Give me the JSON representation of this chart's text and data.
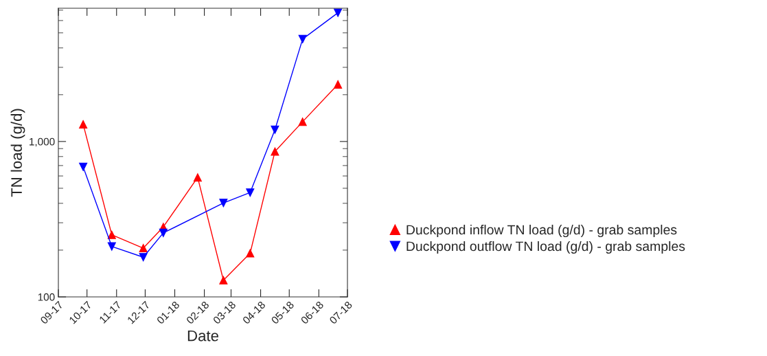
{
  "chart_data": {
    "type": "line",
    "xlabel": "Date",
    "ylabel": "TN load (g/d)",
    "log": "y",
    "legend": "right",
    "grid": false,
    "xlim": [
      "2017-09-01",
      "2018-07-01"
    ],
    "xticks": [
      {
        "value": "2017-09-01",
        "label": "09-17"
      },
      {
        "value": "2017-10-01",
        "label": "10-17"
      },
      {
        "value": "2017-11-01",
        "label": "11-17"
      },
      {
        "value": "2017-12-01",
        "label": "12-17"
      },
      {
        "value": "2018-01-01",
        "label": "01-18"
      },
      {
        "value": "2018-02-01",
        "label": "02-18"
      },
      {
        "value": "2018-03-01",
        "label": "03-18"
      },
      {
        "value": "2018-04-01",
        "label": "04-18"
      },
      {
        "value": "2018-05-01",
        "label": "05-18"
      },
      {
        "value": "2018-06-01",
        "label": "06-18"
      },
      {
        "value": "2018-07-01",
        "label": "07-18"
      }
    ],
    "ylim": [
      100,
      7200
    ],
    "yticks": [
      {
        "value": 100,
        "label": "100"
      },
      {
        "value": 1000,
        "label": "1,000"
      }
    ],
    "series": [
      {
        "name": "Duckpond inflow TN load (g/d) - grab samples",
        "color": "#ff0000",
        "marker": "triangle",
        "x": [
          "2017-09-27",
          "2017-10-27",
          "2017-11-29",
          "2017-12-20",
          "2018-01-25",
          "2018-02-21",
          "2018-03-21",
          "2018-04-16",
          "2018-05-15",
          "2018-06-21"
        ],
        "values": [
          1290,
          251,
          206,
          282,
          587,
          128,
          191,
          862,
          1340,
          2330
        ]
      },
      {
        "name": "Duckpond outflow TN load (g/d) - grab samples",
        "color": "#0000ff",
        "marker": "triangle-down",
        "x": [
          "2017-09-27",
          "2017-10-27",
          "2017-11-29",
          "2017-12-20",
          "2018-02-21",
          "2018-03-21",
          "2018-04-16",
          "2018-05-15",
          "2018-06-21"
        ],
        "values": [
          686,
          211,
          180,
          258,
          402,
          469,
          1190,
          4560,
          6730
        ]
      }
    ]
  }
}
